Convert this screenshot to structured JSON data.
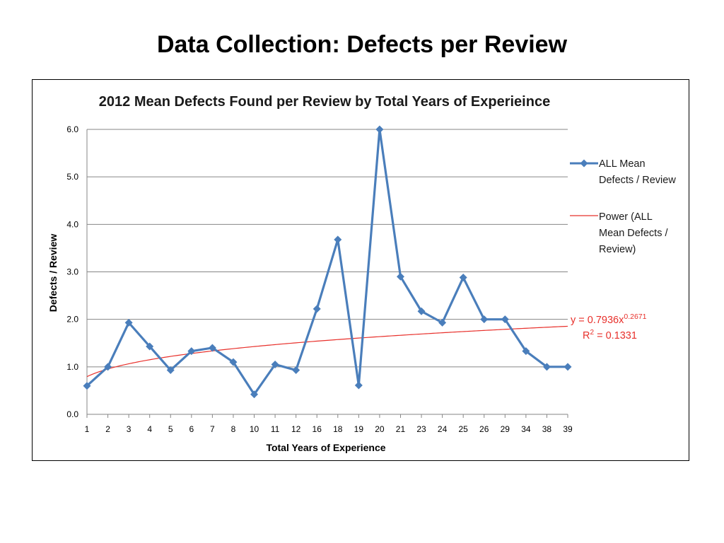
{
  "slide": {
    "title": "Data Collection: Defects per Review"
  },
  "colors": {
    "series": "#4a7ebb",
    "trend": "#e8302b",
    "grid": "#868686"
  },
  "chart_data": {
    "type": "line",
    "title": "2012 Mean Defects Found per Review by Total Years of Experieince",
    "xlabel": "Total Years of Experience",
    "ylabel": "Defects / Review",
    "ylim": [
      0,
      6
    ],
    "yticks": [
      "0.0",
      "1.0",
      "2.0",
      "3.0",
      "4.0",
      "5.0",
      "6.0"
    ],
    "grid": "horizontal",
    "legend_position": "right",
    "categories": [
      "1",
      "2",
      "3",
      "4",
      "5",
      "6",
      "7",
      "8",
      "10",
      "11",
      "12",
      "16",
      "18",
      "19",
      "20",
      "21",
      "23",
      "24",
      "25",
      "26",
      "29",
      "34",
      "38",
      "39"
    ],
    "series": [
      {
        "name": "ALL Mean Defects / Review",
        "legend_lines": [
          "ALL Mean",
          "Defects / Review"
        ],
        "marker": "diamond",
        "values": [
          0.6,
          1.0,
          1.93,
          1.43,
          0.93,
          1.33,
          1.4,
          1.1,
          0.42,
          1.05,
          0.93,
          2.22,
          3.68,
          0.61,
          6.0,
          2.9,
          2.17,
          1.93,
          2.88,
          2.0,
          2.0,
          1.33,
          1.0,
          1.0
        ]
      }
    ],
    "trendline": {
      "type": "power",
      "name": "Power (ALL Mean Defects / Review)",
      "legend_lines": [
        "Power (ALL",
        "Mean  Defects /",
        "Review)"
      ],
      "coefficient": 0.7936,
      "exponent": 0.2671,
      "equation_prefix": "y = 0.7936x",
      "equation_exponent": "0.2671",
      "r2_prefix": "R",
      "r2_power": "2",
      "r2_value": " = 0.1331"
    }
  }
}
